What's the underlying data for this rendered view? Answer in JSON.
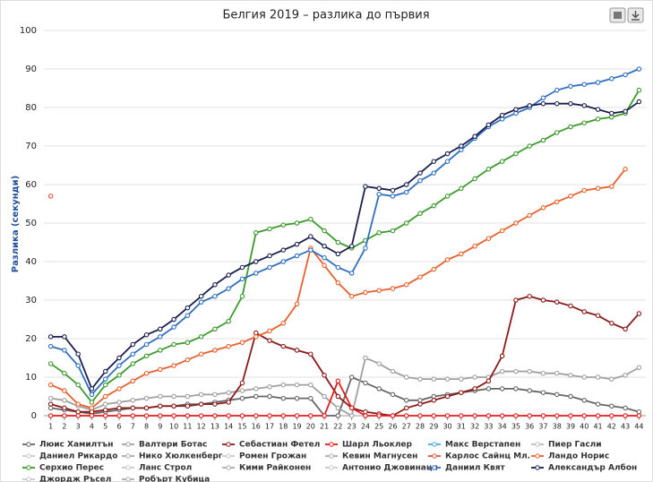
{
  "chart_data": {
    "type": "line",
    "title": "Белгия 2019 – разлика до първия",
    "y_label": "Разлика (секунди)",
    "x": [
      1,
      2,
      3,
      4,
      5,
      6,
      7,
      8,
      9,
      10,
      11,
      12,
      13,
      14,
      15,
      16,
      17,
      18,
      19,
      20,
      21,
      22,
      23,
      24,
      25,
      26,
      27,
      28,
      29,
      30,
      31,
      32,
      33,
      34,
      35,
      36,
      37,
      38,
      39,
      40,
      41,
      42,
      43,
      44
    ],
    "xticks": [
      1,
      2,
      3,
      4,
      5,
      6,
      7,
      8,
      9,
      10,
      11,
      12,
      13,
      14,
      15,
      16,
      17,
      18,
      19,
      20,
      21,
      22,
      23,
      24,
      25,
      26,
      27,
      28,
      29,
      30,
      31,
      32,
      33,
      34,
      35,
      36,
      37,
      38,
      39,
      40,
      41,
      42,
      43,
      44
    ],
    "xlim": [
      0.5,
      44.5
    ],
    "ylim": [
      0,
      100
    ],
    "yticks": [
      0,
      10,
      20,
      30,
      40,
      50,
      60,
      70,
      80,
      90,
      100
    ],
    "grid": true,
    "series": [
      {
        "name": "Люис Хамилтън",
        "color": "#666666",
        "values": [
          2,
          1.5,
          1,
          0.5,
          1,
          1.5,
          2,
          2,
          2.5,
          2.5,
          3,
          3,
          3.5,
          4,
          4.5,
          5,
          5,
          4.5,
          4.5,
          4.5,
          0,
          0,
          10,
          8.5,
          7,
          5.5,
          4,
          4,
          5,
          5.5,
          6,
          6.5,
          7,
          7,
          7,
          6.5,
          6,
          5.5,
          5,
          4,
          3,
          2.5,
          2,
          1
        ]
      },
      {
        "name": "Валтери Ботас",
        "color": "#a0a0a0",
        "values": [
          4.5,
          4,
          2.5,
          1.5,
          3,
          3.5,
          4,
          4.5,
          5,
          5,
          5,
          5.5,
          5.5,
          6,
          6.5,
          7,
          7.5,
          8,
          8,
          8,
          5,
          2,
          0,
          15,
          13.5,
          11.5,
          10,
          9.5,
          9.5,
          9.5,
          9.5,
          10,
          10,
          11.5,
          11.5,
          11.5,
          11,
          11,
          10.5,
          10,
          10,
          9.5,
          10.5,
          12.5
        ]
      },
      {
        "name": "Себастиан Фетел",
        "color": "#8b1a1a",
        "values": [
          3,
          2,
          1,
          1,
          1.5,
          2,
          2,
          2,
          2.5,
          2.5,
          2.5,
          3,
          3,
          3.5,
          8.5,
          21.5,
          19.5,
          18,
          17,
          16,
          10.5,
          5,
          2,
          1,
          0.5,
          0,
          2,
          3,
          4,
          5,
          6,
          7,
          9,
          15.5,
          30,
          31,
          30,
          29.5,
          28.5,
          27,
          26,
          24,
          22.5,
          26.5
        ]
      },
      {
        "name": "Шарл Льоклер",
        "color": "#e41a1c",
        "values": [
          0,
          0,
          0,
          0,
          0,
          0,
          0,
          0,
          0,
          0,
          0,
          0,
          0,
          0,
          0,
          0,
          0,
          0,
          0,
          0,
          0,
          9,
          2,
          0,
          0,
          0,
          0,
          0,
          0,
          0,
          0,
          0,
          0,
          0,
          0,
          0,
          0,
          0,
          0,
          0,
          0,
          0,
          0,
          0
        ]
      },
      {
        "name": "Макс Верстапен",
        "color": "#4aa8e0",
        "values": [
          null,
          null,
          null,
          null,
          null,
          null,
          null,
          null,
          null,
          null,
          null,
          null,
          null,
          null,
          null,
          null,
          null,
          null,
          null,
          null,
          null,
          null,
          null,
          null,
          null,
          null,
          null,
          null,
          null,
          null,
          null,
          null,
          null,
          null,
          null,
          null,
          null,
          null,
          null,
          null,
          null,
          null,
          null,
          null
        ]
      },
      {
        "name": "Пиер Гасли",
        "color": "#bbbbbb",
        "values": [
          null,
          null,
          null,
          null,
          null,
          null,
          null,
          null,
          null,
          null,
          null,
          null,
          null,
          null,
          null,
          null,
          null,
          null,
          null,
          null,
          null,
          null,
          null,
          null,
          null,
          null,
          null,
          null,
          null,
          null,
          null,
          null,
          null,
          null,
          null,
          null,
          null,
          null,
          null,
          null,
          null,
          null,
          null,
          null
        ]
      },
      {
        "name": "Даниел Рикардо",
        "color": "#c8c8c8",
        "values": [
          null,
          null,
          null,
          null,
          null,
          null,
          null,
          null,
          null,
          null,
          null,
          null,
          null,
          null,
          null,
          null,
          null,
          null,
          null,
          null,
          null,
          null,
          null,
          null,
          null,
          null,
          null,
          null,
          null,
          null,
          null,
          null,
          null,
          null,
          null,
          null,
          null,
          null,
          null,
          null,
          null,
          null,
          null,
          null
        ]
      },
      {
        "name": "Нико Хюлкенберг",
        "color": "#aaaaaa",
        "values": [
          null,
          null,
          null,
          null,
          null,
          null,
          null,
          null,
          null,
          null,
          null,
          null,
          null,
          null,
          null,
          null,
          null,
          null,
          null,
          null,
          null,
          null,
          null,
          null,
          null,
          null,
          null,
          null,
          null,
          null,
          null,
          null,
          null,
          null,
          null,
          null,
          null,
          null,
          null,
          null,
          null,
          null,
          null,
          null
        ]
      },
      {
        "name": "Ромен Грожан",
        "color": "#c8c8c8",
        "values": [
          null,
          null,
          null,
          null,
          null,
          null,
          null,
          null,
          null,
          null,
          null,
          null,
          null,
          null,
          null,
          null,
          null,
          null,
          null,
          null,
          null,
          null,
          null,
          null,
          null,
          null,
          null,
          null,
          null,
          null,
          null,
          null,
          null,
          null,
          null,
          null,
          null,
          null,
          null,
          null,
          null,
          null,
          null,
          null
        ]
      },
      {
        "name": "Кевин Магнусен",
        "color": "#aaaaaa",
        "values": [
          null,
          null,
          null,
          null,
          null,
          null,
          null,
          null,
          null,
          null,
          null,
          null,
          null,
          null,
          null,
          null,
          null,
          null,
          null,
          null,
          null,
          null,
          null,
          null,
          null,
          null,
          null,
          null,
          null,
          null,
          null,
          null,
          null,
          null,
          null,
          null,
          null,
          null,
          null,
          null,
          null,
          null,
          null,
          null
        ]
      },
      {
        "name": "Карлос Сайнц Мл.",
        "color": "#e0533a",
        "values": [
          57,
          null,
          null,
          null,
          null,
          null,
          null,
          null,
          null,
          null,
          null,
          null,
          null,
          null,
          null,
          null,
          null,
          null,
          null,
          null,
          null,
          null,
          null,
          null,
          null,
          null,
          null,
          null,
          null,
          null,
          null,
          null,
          null,
          null,
          null,
          null,
          null,
          null,
          null,
          null,
          null,
          null,
          null,
          null
        ]
      },
      {
        "name": "Ландо Норис",
        "color": "#e8602c",
        "values": [
          8,
          6.5,
          3,
          2,
          5,
          7,
          9,
          11,
          12,
          13,
          14.5,
          16,
          17,
          18,
          19,
          20.5,
          22,
          24,
          29,
          43.5,
          39,
          34.5,
          31,
          32,
          32.5,
          33,
          34,
          36,
          38,
          40.5,
          42,
          44,
          46,
          48,
          50,
          52,
          54,
          55.5,
          57,
          58.5,
          59,
          59.5,
          64,
          null
        ]
      },
      {
        "name": "Серхио Перес",
        "color": "#3a9a2a",
        "values": [
          13.5,
          11,
          8,
          3.5,
          8,
          10.5,
          13.5,
          15.5,
          17,
          18.5,
          19,
          20.5,
          22.5,
          24.5,
          31,
          47.5,
          48.5,
          49.5,
          50,
          51,
          48,
          45,
          43.5,
          45.5,
          47.5,
          48,
          50,
          52.5,
          54.5,
          57,
          59,
          61.5,
          64,
          66,
          68,
          70,
          71.5,
          73.5,
          75,
          76,
          77,
          77.5,
          78.5,
          84.5
        ]
      },
      {
        "name": "Ланс Строл",
        "color": "#c8c8c8",
        "values": [
          null,
          null,
          null,
          null,
          null,
          null,
          null,
          null,
          null,
          null,
          null,
          null,
          null,
          null,
          null,
          null,
          null,
          null,
          null,
          null,
          null,
          null,
          null,
          null,
          null,
          null,
          null,
          null,
          null,
          null,
          null,
          null,
          null,
          null,
          null,
          null,
          null,
          null,
          null,
          null,
          null,
          null,
          null,
          null
        ]
      },
      {
        "name": "Кими Райконен",
        "color": "#aaaaaa",
        "values": [
          null,
          null,
          null,
          null,
          null,
          null,
          null,
          null,
          null,
          null,
          null,
          null,
          null,
          null,
          null,
          null,
          null,
          null,
          null,
          null,
          null,
          null,
          null,
          null,
          null,
          null,
          null,
          null,
          null,
          null,
          null,
          null,
          null,
          null,
          null,
          null,
          null,
          null,
          null,
          null,
          null,
          null,
          null,
          null
        ]
      },
      {
        "name": "Антонио Джовинаци",
        "color": "#c8c8c8",
        "values": [
          null,
          null,
          null,
          null,
          null,
          null,
          null,
          null,
          null,
          null,
          null,
          null,
          null,
          null,
          null,
          null,
          null,
          null,
          null,
          null,
          null,
          null,
          null,
          null,
          null,
          null,
          null,
          null,
          null,
          null,
          null,
          null,
          null,
          null,
          null,
          null,
          null,
          null,
          null,
          null,
          null,
          null,
          null,
          null
        ]
      },
      {
        "name": "Даниил Квят",
        "color": "#2e6fc0",
        "values": [
          18,
          17,
          13,
          5.5,
          9.5,
          13,
          16,
          18.5,
          20.5,
          23,
          26,
          29.5,
          31,
          33,
          35.5,
          37,
          38.5,
          40,
          41.5,
          43,
          41,
          38.5,
          37,
          43.5,
          57.5,
          57,
          58,
          61,
          63,
          66,
          69,
          72,
          75,
          77,
          78.5,
          80,
          82.5,
          84.5,
          85.5,
          86,
          86.5,
          87.5,
          88.5,
          90
        ]
      },
      {
        "name": "Александър Албон",
        "color": "#1a1f4e",
        "values": [
          20.5,
          20.5,
          16,
          7,
          11.5,
          15,
          18.5,
          21,
          22.5,
          25,
          28,
          31,
          34,
          36.5,
          38.5,
          40,
          41.5,
          43,
          44.5,
          46.5,
          44,
          42,
          44,
          59.5,
          59,
          58.5,
          60,
          63,
          66,
          68,
          70,
          72.5,
          75.5,
          78,
          79.5,
          80.5,
          81,
          81,
          81,
          80.5,
          79.5,
          78.5,
          79,
          81.5
        ]
      },
      {
        "name": "Джордж Ръсел",
        "color": "#c8c8c8",
        "values": [
          null,
          null,
          null,
          null,
          null,
          null,
          null,
          null,
          null,
          null,
          null,
          null,
          null,
          null,
          null,
          null,
          null,
          null,
          null,
          null,
          null,
          null,
          null,
          null,
          null,
          null,
          null,
          null,
          null,
          null,
          null,
          null,
          null,
          null,
          null,
          null,
          null,
          null,
          null,
          null,
          null,
          null,
          null,
          null
        ]
      },
      {
        "name": "Робърт Кубица",
        "color": "#aaaaaa",
        "values": [
          null,
          null,
          null,
          null,
          null,
          null,
          null,
          null,
          null,
          null,
          null,
          null,
          null,
          null,
          null,
          null,
          null,
          null,
          null,
          null,
          null,
          null,
          null,
          null,
          null,
          null,
          null,
          null,
          null,
          null,
          null,
          null,
          null,
          null,
          null,
          null,
          null,
          null,
          null,
          null,
          null,
          null,
          null,
          null
        ]
      }
    ]
  }
}
